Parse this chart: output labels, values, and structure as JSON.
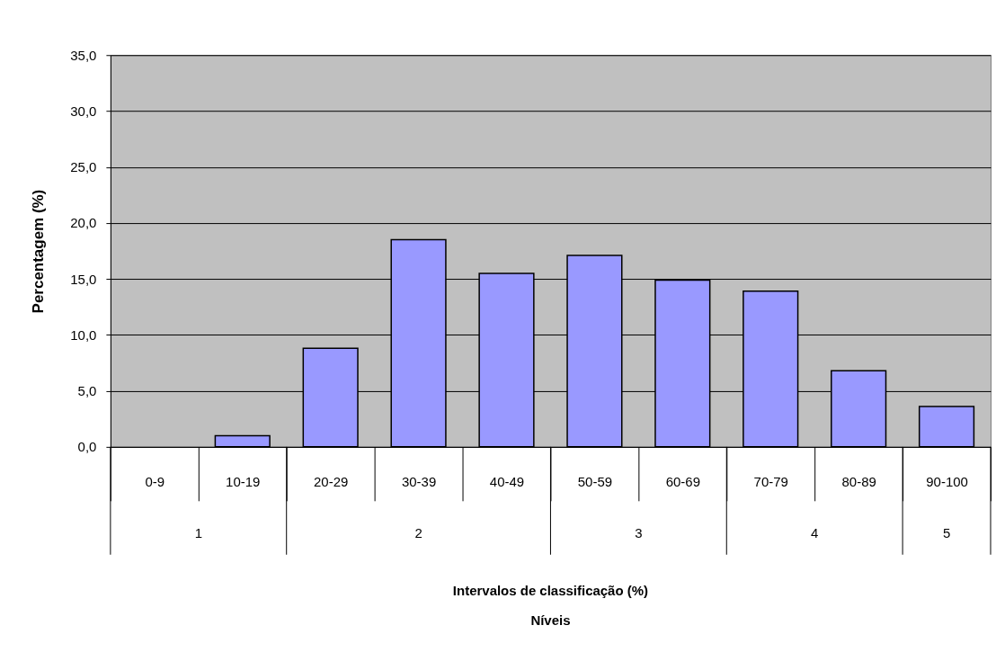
{
  "chart_data": {
    "type": "bar",
    "ylabel": "Percentagem (%)",
    "categories": [
      "0-9",
      "10-19",
      "20-29",
      "30-39",
      "40-49",
      "50-59",
      "60-69",
      "70-79",
      "80-89",
      "90-100"
    ],
    "values": [
      0,
      1.0,
      8.8,
      18.5,
      15.5,
      17.1,
      14.9,
      13.9,
      6.8,
      3.6
    ],
    "color": "#9999ff",
    "ylim": [
      0,
      35
    ],
    "yticks": [
      {
        "value": 0,
        "label": "0,0"
      },
      {
        "value": 5,
        "label": "5,0"
      },
      {
        "value": 10,
        "label": "10,0"
      },
      {
        "value": 15,
        "label": "15,0"
      },
      {
        "value": 20,
        "label": "20,0"
      },
      {
        "value": 25,
        "label": "25,0"
      },
      {
        "value": 30,
        "label": "30,0"
      },
      {
        "value": 35,
        "label": "35,0"
      }
    ],
    "grid": "y",
    "annotations": [
      "1",
      "2",
      "3",
      "4",
      "5",
      "Intervalos de classificação (%)",
      "Níveis"
    ]
  }
}
